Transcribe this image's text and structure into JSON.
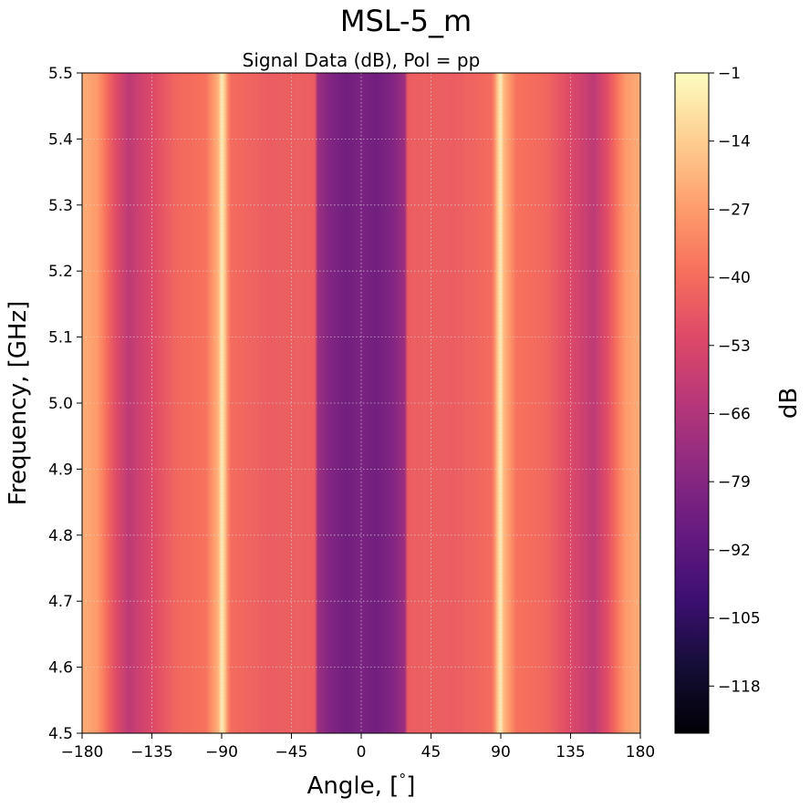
{
  "figure": {
    "suptitle": "MSL-5_m"
  },
  "chart_data": {
    "type": "heatmap",
    "title": "Signal Data (dB), Pol = pp",
    "xlabel": "Angle, [$^{\\circ}$]",
    "xlabel_text": "Angle, [",
    "xlabel_degree": "°",
    "xlabel_close": "]",
    "ylabel": "Frequency, [GHz]",
    "xlim": [
      -180,
      180
    ],
    "ylim": [
      4.5,
      5.5
    ],
    "x_ticks": [
      -180,
      -135,
      -90,
      -45,
      0,
      45,
      90,
      135,
      180
    ],
    "x_tick_labels": [
      "−180",
      "−135",
      "−90",
      "−45",
      "0",
      "45",
      "90",
      "135",
      "180"
    ],
    "y_ticks": [
      4.5,
      4.6,
      4.7,
      4.8,
      4.9,
      5.0,
      5.1,
      5.2,
      5.3,
      5.4,
      5.5
    ],
    "y_tick_labels": [
      "4.5",
      "4.6",
      "4.7",
      "4.8",
      "4.9",
      "5.0",
      "5.1",
      "5.2",
      "5.3",
      "5.4",
      "5.5"
    ],
    "grid": true,
    "colormap": "magma",
    "colorbar": {
      "label": "dB",
      "range": [
        -127,
        -1
      ],
      "ticks": [
        -1,
        -14,
        -27,
        -40,
        -53,
        -66,
        -79,
        -92,
        -105,
        -118
      ],
      "tick_labels": [
        "−1",
        "−14",
        "−27",
        "−40",
        "−53",
        "−66",
        "−79",
        "−92",
        "−105",
        "−118"
      ]
    },
    "value_profile": {
      "description": "approximate dB level vs angle (symmetric about 0°)",
      "angles": [
        0,
        10,
        20,
        28,
        30,
        40,
        60,
        85,
        88,
        90,
        92,
        100,
        120,
        140,
        150,
        160,
        170,
        180
      ],
      "db": [
        -82,
        -85,
        -80,
        -72,
        -45,
        -44,
        -45,
        -40,
        -15,
        -5,
        -20,
        -38,
        -42,
        -55,
        -62,
        -48,
        -28,
        -22
      ]
    }
  }
}
